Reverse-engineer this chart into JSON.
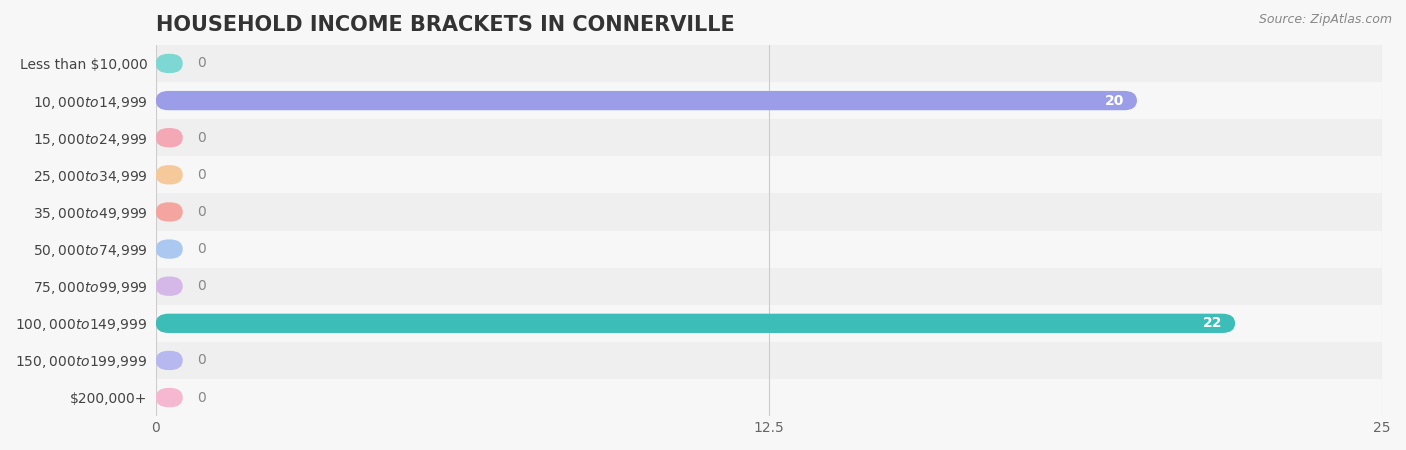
{
  "title": "HOUSEHOLD INCOME BRACKETS IN CONNERVILLE",
  "source": "Source: ZipAtlas.com",
  "categories": [
    "Less than $10,000",
    "$10,000 to $14,999",
    "$15,000 to $24,999",
    "$25,000 to $34,999",
    "$35,000 to $49,999",
    "$50,000 to $74,999",
    "$75,000 to $99,999",
    "$100,000 to $149,999",
    "$150,000 to $199,999",
    "$200,000+"
  ],
  "values": [
    0,
    20,
    0,
    0,
    0,
    0,
    0,
    22,
    0,
    0
  ],
  "bar_colors": [
    "#7dd8d4",
    "#9b9de8",
    "#f4a7b5",
    "#f5c99a",
    "#f5a5a0",
    "#aac8f0",
    "#d5b8e8",
    "#3dbdb8",
    "#b8b8f0",
    "#f5b8d0"
  ],
  "value_label_color_nonzero": "#ffffff",
  "value_label_color_zero": "#888888",
  "xlim": [
    0,
    25
  ],
  "xticks": [
    0,
    12.5,
    25
  ],
  "background_color": "#f7f7f7",
  "row_bg_even": "#efefef",
  "row_bg_odd": "#f7f7f7",
  "title_fontsize": 15,
  "label_fontsize": 10,
  "tick_fontsize": 10,
  "bar_height": 0.52
}
